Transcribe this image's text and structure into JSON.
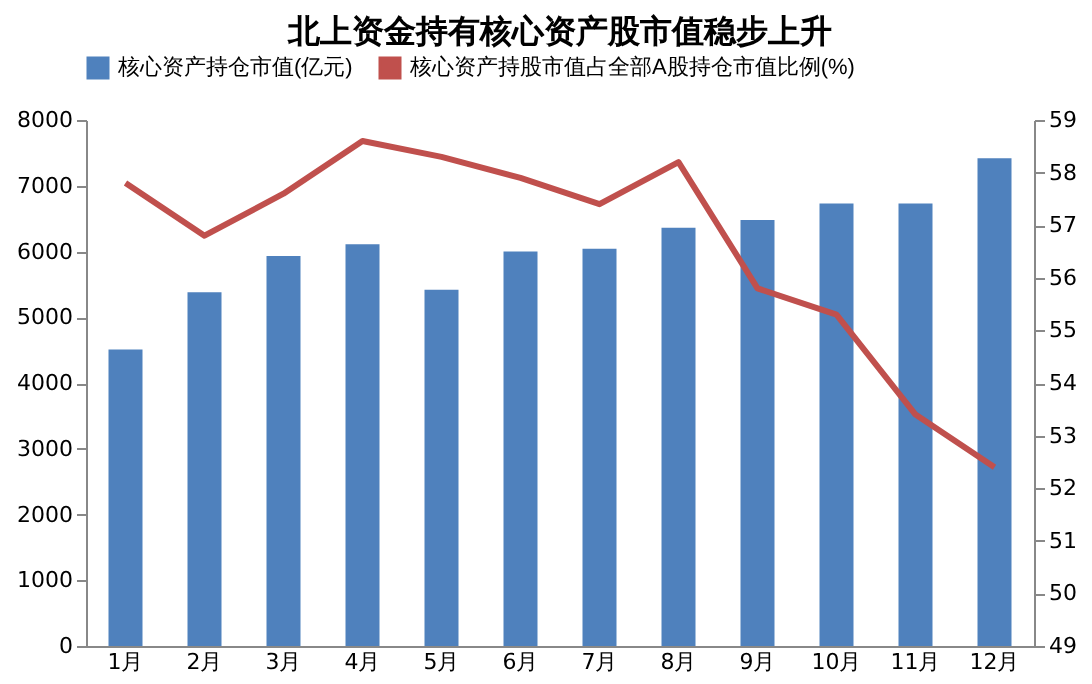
{
  "chart_data": {
    "type": "bar",
    "title": "北上资金持有核心资产股市值稳步上升",
    "categories": [
      "1月",
      "2月",
      "3月",
      "4月",
      "5月",
      "6月",
      "7月",
      "8月",
      "9月",
      "10月",
      "11月",
      "12月"
    ],
    "series": [
      {
        "name": "核心资产持仓市值(亿元)",
        "color": "#4f81bd",
        "values": [
          4510,
          5380,
          5930,
          6110,
          5420,
          6000,
          6040,
          6360,
          6480,
          6730,
          6730,
          7420
        ]
      },
      {
        "name": "核心资产持股市值占全部A股持仓市值比例(%)",
        "type": "line",
        "axis": "y2",
        "color": "#c0504d",
        "values": [
          57.8,
          56.8,
          57.6,
          58.6,
          58.3,
          57.9,
          57.4,
          58.2,
          55.8,
          55.3,
          53.4,
          52.4
        ]
      }
    ],
    "ylim": [
      0,
      8000
    ],
    "yticks": [
      0,
      1000,
      2000,
      3000,
      4000,
      5000,
      6000,
      7000,
      8000
    ],
    "y2lim": [
      49,
      59
    ],
    "y2ticks": [
      49,
      50,
      51,
      52,
      53,
      54,
      55,
      56,
      57,
      58,
      59
    ],
    "grid": false,
    "legend": "top",
    "marker": "none",
    "line_style": "solid"
  }
}
